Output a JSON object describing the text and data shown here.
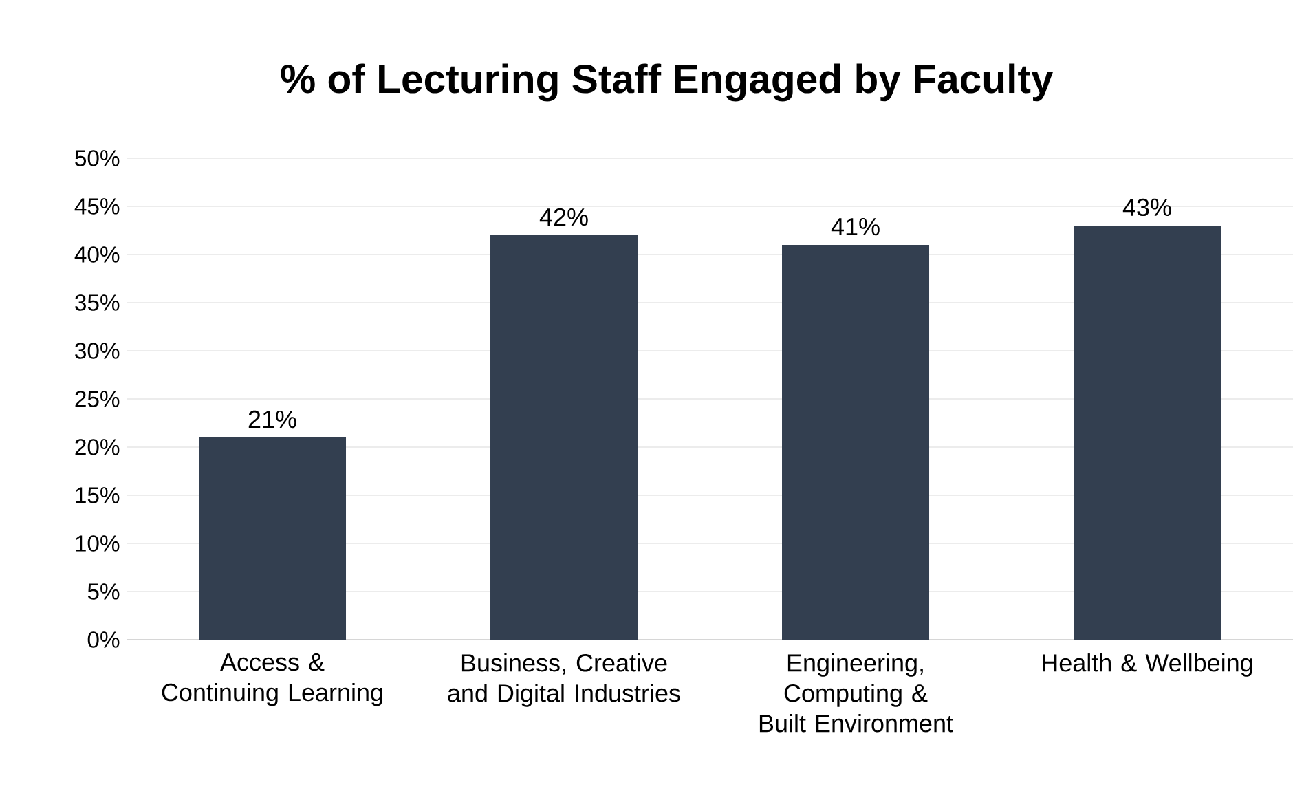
{
  "chart_data": {
    "type": "bar",
    "title": "% of Lecturing Staff Engaged by Faculty",
    "categories": [
      "Access & Continuing Learning",
      "Business, Creative and Digital Industries",
      "Engineering, Computing & Built Environment",
      "Health & Wellbeing"
    ],
    "values": [
      21,
      42,
      41,
      43
    ],
    "color": "#333f50",
    "value_labels": [
      "21%",
      "42%",
      "41%",
      "43%"
    ],
    "ylim": [
      0,
      50
    ],
    "yticks": [
      {
        "value": 0,
        "label": "0%"
      },
      {
        "value": 5,
        "label": "5%"
      },
      {
        "value": 10,
        "label": "10%"
      },
      {
        "value": 15,
        "label": "15%"
      },
      {
        "value": 20,
        "label": "20%"
      },
      {
        "value": 25,
        "label": "25%"
      },
      {
        "value": 30,
        "label": "30%"
      },
      {
        "value": 35,
        "label": "35%"
      },
      {
        "value": 40,
        "label": "40%"
      },
      {
        "value": 45,
        "label": "45%"
      },
      {
        "value": 50,
        "label": "50%"
      }
    ],
    "grid": "y"
  }
}
